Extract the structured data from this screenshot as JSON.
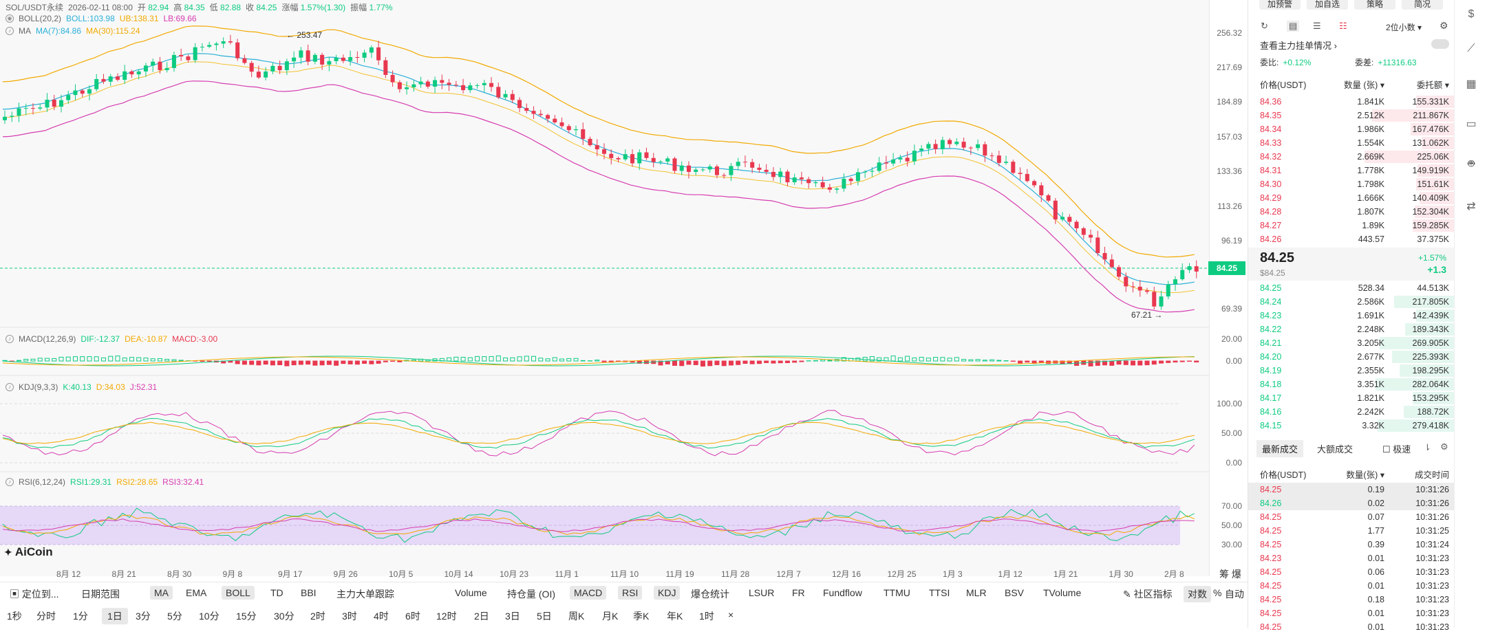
{
  "header": {
    "symbol": "SOL/USDT永续",
    "date": "2026-02-11 08:00",
    "open_label": "开",
    "open": "82.94",
    "high_label": "高",
    "high": "84.35",
    "low_label": "低",
    "low": "82.88",
    "close_label": "收",
    "close": "84.25",
    "change_label": "涨幅",
    "change": "1.57%(1.30)",
    "amp_label": "振幅",
    "amp": "1.77%"
  },
  "boll": {
    "name": "BOLL(20,2)",
    "mid": "BOLL:103.98",
    "ub": "UB:138.31",
    "lb": "LB:69.66"
  },
  "ma": {
    "name": "MA",
    "ma7": "MA(7):84.86",
    "ma30": "MA(30):115.24"
  },
  "macd": {
    "name": "MACD(12,26,9)",
    "dif": "DIF:-12.37",
    "dea": "DEA:-10.87",
    "macd": "MACD:-3.00"
  },
  "kdj": {
    "name": "KDJ(9,3,3)",
    "k": "K:40.13",
    "d": "D:34.03",
    "j": "J:52.31"
  },
  "rsi": {
    "name": "RSI(6,12,24)",
    "rsi1": "RSI1:29.31",
    "rsi2": "RSI2:28.65",
    "rsi3": "RSI3:32.41"
  },
  "annotations": {
    "high": "253.47",
    "low": "67.21",
    "current": "84.25"
  },
  "logo": "AiCoin",
  "price_axis": [
    "256.32",
    "217.69",
    "184.89",
    "157.03",
    "133.36",
    "113.26",
    "96.19",
    "69.39"
  ],
  "macd_axis": [
    "20.00",
    "0.00"
  ],
  "kdj_axis": [
    "100.00",
    "50.00",
    "0.00"
  ],
  "rsi_axis": [
    "70.00",
    "50.00",
    "30.00"
  ],
  "x_labels": [
    "8月 12",
    "8月 21",
    "8月 30",
    "9月 8",
    "9月 17",
    "9月 26",
    "10月 5",
    "10月 14",
    "10月 23",
    "11月 1",
    "11月 10",
    "11月 19",
    "11月 28",
    "12月 7",
    "12月 16",
    "12月 25",
    "1月 3",
    "1月 12",
    "1月 21",
    "1月 30",
    "2月 8"
  ],
  "corner_label": "筹 爆",
  "toolbar1": {
    "locate": "定位到...",
    "date_range": "日期范围",
    "indicators": [
      "MA",
      "EMA",
      "BOLL",
      "TD",
      "BBI",
      "主力大单跟踪"
    ],
    "sub_indicators": [
      "Volume",
      "持仓量 (OI)",
      "MACD",
      "RSI",
      "KDJ",
      "爆仓统计",
      "LSUR",
      "FR",
      "Fundflow",
      "TTMU",
      "TTSI",
      "MLR",
      "BSV",
      "TVolume"
    ],
    "community": "社区指标",
    "log": "对数",
    "pct": "%",
    "auto": "自动"
  },
  "timeframes": [
    "1秒",
    "分时",
    "1分",
    "1日",
    "3分",
    "5分",
    "10分",
    "15分",
    "30分",
    "2时",
    "3时",
    "4时",
    "6时",
    "12时",
    "2日",
    "3日",
    "5日",
    "周K",
    "月K",
    "季K",
    "年K",
    "1时"
  ],
  "orderbook": {
    "top_buttons": [
      "加预警",
      "加自选",
      "策略",
      "简况"
    ],
    "precision": "2位小数",
    "whale_link": "查看主力挂单情况",
    "ratio_label": "委比:",
    "ratio": "+0.12%",
    "diff_label": "委差:",
    "diff": "+11316.63",
    "col_price": "价格(USDT)",
    "col_qty": "数量 (张)",
    "col_amt": "委托额",
    "asks": [
      {
        "p": "84.36",
        "q": "1.841K",
        "a": "155.331K",
        "w": 0.35
      },
      {
        "p": "84.35",
        "q": "2.512K",
        "a": "211.867K",
        "w": 0.75
      },
      {
        "p": "84.34",
        "q": "1.986K",
        "a": "167.476K",
        "w": 0.4
      },
      {
        "p": "84.33",
        "q": "1.554K",
        "a": "131.062K",
        "w": 0.3
      },
      {
        "p": "84.32",
        "q": "2.669K",
        "a": "225.06K",
        "w": 0.82
      },
      {
        "p": "84.31",
        "q": "1.778K",
        "a": "149.919K",
        "w": 0.34
      },
      {
        "p": "84.30",
        "q": "1.798K",
        "a": "151.61K",
        "w": 0.35
      },
      {
        "p": "84.29",
        "q": "1.666K",
        "a": "140.409K",
        "w": 0.32
      },
      {
        "p": "84.28",
        "q": "1.807K",
        "a": "152.304K",
        "w": 0.36
      },
      {
        "p": "84.27",
        "q": "1.89K",
        "a": "159.285K",
        "w": 0.38
      },
      {
        "p": "84.26",
        "q": "443.57",
        "a": "37.375K",
        "w": 0.0
      }
    ],
    "last_price": "84.25",
    "last_usd": "$84.25",
    "last_pct": "+1.57%",
    "last_chg": "+1.3",
    "bids": [
      {
        "p": "84.25",
        "q": "528.34",
        "a": "44.513K",
        "w": 0.0
      },
      {
        "p": "84.24",
        "q": "2.586K",
        "a": "217.805K",
        "w": 0.55
      },
      {
        "p": "84.23",
        "q": "1.691K",
        "a": "142.439K",
        "w": 0.35
      },
      {
        "p": "84.22",
        "q": "2.248K",
        "a": "189.343K",
        "w": 0.45
      },
      {
        "p": "84.21",
        "q": "3.205K",
        "a": "269.905K",
        "w": 0.68
      },
      {
        "p": "84.20",
        "q": "2.677K",
        "a": "225.393K",
        "w": 0.57
      },
      {
        "p": "84.19",
        "q": "2.355K",
        "a": "198.295K",
        "w": 0.5
      },
      {
        "p": "84.18",
        "q": "3.351K",
        "a": "282.064K",
        "w": 0.72
      },
      {
        "p": "84.17",
        "q": "1.821K",
        "a": "153.295K",
        "w": 0.38
      },
      {
        "p": "84.16",
        "q": "2.242K",
        "a": "188.72K",
        "w": 0.46
      },
      {
        "p": "84.15",
        "q": "3.32K",
        "a": "279.418K",
        "w": 0.7
      }
    ],
    "trades_tab": "最新成交",
    "bigtrades_tab": "大额成交",
    "fast_label": "极速",
    "trade_cols": {
      "price": "价格(USDT)",
      "qty": "数量(张)",
      "time": "成交时间"
    },
    "trades": [
      {
        "p": "84.25",
        "q": "0.19",
        "t": "10:31:26",
        "c": "up",
        "hl": true
      },
      {
        "p": "84.26",
        "q": "0.02",
        "t": "10:31:26",
        "c": "dn",
        "hl": true
      },
      {
        "p": "84.25",
        "q": "0.07",
        "t": "10:31:26",
        "c": "up",
        "hl": false
      },
      {
        "p": "84.25",
        "q": "1.77",
        "t": "10:31:25",
        "c": "up",
        "hl": false
      },
      {
        "p": "84.25",
        "q": "0.39",
        "t": "10:31:24",
        "c": "up",
        "hl": false
      },
      {
        "p": "84.23",
        "q": "0.01",
        "t": "10:31:23",
        "c": "up",
        "hl": false
      },
      {
        "p": "84.25",
        "q": "0.06",
        "t": "10:31:23",
        "c": "up",
        "hl": false
      },
      {
        "p": "84.25",
        "q": "0.01",
        "t": "10:31:23",
        "c": "up",
        "hl": false
      },
      {
        "p": "84.25",
        "q": "0.18",
        "t": "10:31:23",
        "c": "up",
        "hl": false
      },
      {
        "p": "84.25",
        "q": "0.01",
        "t": "10:31:23",
        "c": "up",
        "hl": false
      },
      {
        "p": "84.25",
        "q": "0.01",
        "t": "10:31:23",
        "c": "up",
        "hl": false
      }
    ]
  },
  "colors": {
    "up": "#0ecb81",
    "down": "#e8384f",
    "boll_mid": "#2ab0d8",
    "boll_ub": "#f2a900",
    "boll_lb": "#d63cb0",
    "rsi_band": "#e6d8f7"
  }
}
